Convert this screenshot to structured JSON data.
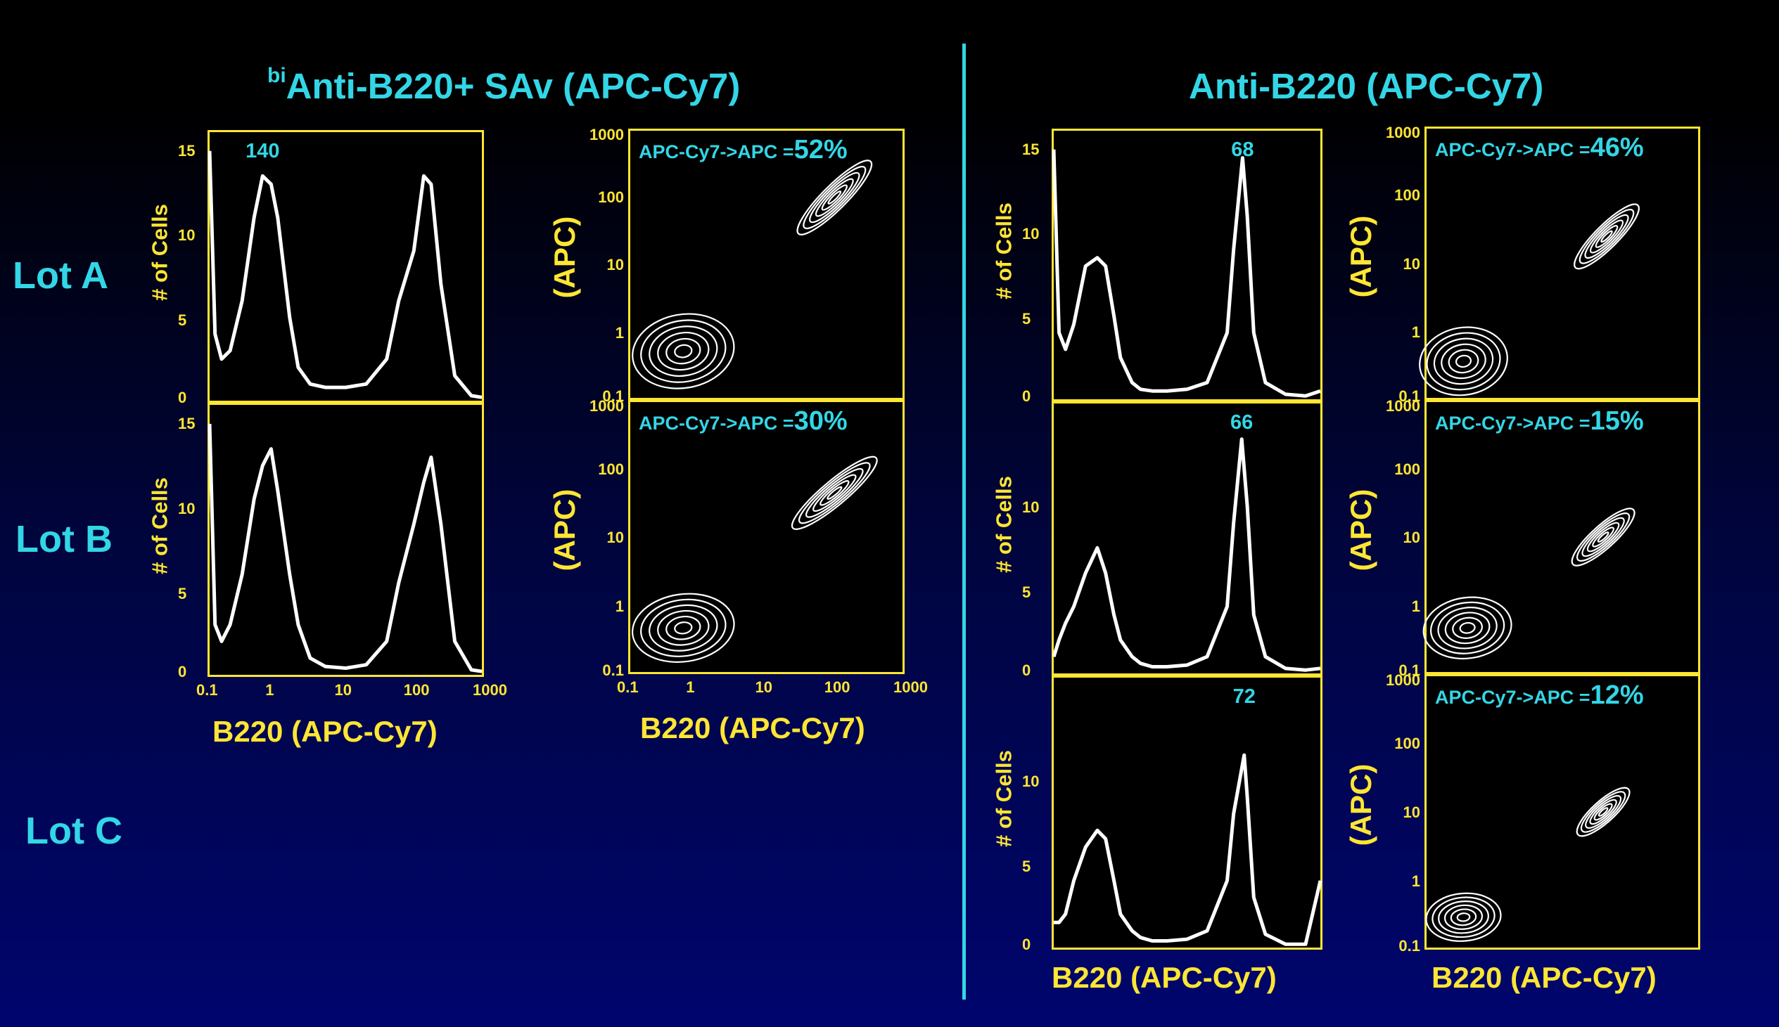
{
  "titles": {
    "left_sup": "bi",
    "left": "Anti-B220+ SAv  (APC-Cy7)",
    "right": "Anti-B220  (APC-Cy7)"
  },
  "lots": [
    "Lot A",
    "Lot B",
    "Lot C"
  ],
  "axis_labels": {
    "hist_y": "# of Cells",
    "contour_y": "(APC)",
    "x": "B220  (APC-Cy7)"
  },
  "ticks": {
    "hist_y_full": [
      "15",
      "10",
      "5",
      "0"
    ],
    "hist_y_short": [
      "10",
      "5",
      "0"
    ],
    "log": [
      "1000",
      "100",
      "10",
      "1",
      "0.1"
    ],
    "log_x": [
      "0.1",
      "1",
      "10",
      "100",
      "1000"
    ]
  },
  "colors": {
    "title": "#33d6e6",
    "axis": "#ffe633",
    "plot_bg": "#000000",
    "trace": "#ffffff"
  },
  "chart_data": [
    {
      "type": "line",
      "panel": "left-hist-lotA",
      "xlabel": "",
      "ylabel": "# of Cells",
      "xscale": "log",
      "xlim": [
        0.1,
        1000
      ],
      "ylim": [
        0,
        15
      ],
      "peak_label": "140",
      "x": [
        0.1,
        0.12,
        0.15,
        0.2,
        0.3,
        0.45,
        0.6,
        0.8,
        1,
        1.5,
        2,
        3,
        5,
        10,
        20,
        40,
        60,
        100,
        140,
        180,
        250,
        400,
        700,
        1000
      ],
      "values": [
        15,
        4,
        2.5,
        3,
        6,
        11,
        13.5,
        13,
        11,
        5,
        2,
        1,
        0.8,
        0.8,
        1,
        2.5,
        6,
        9,
        13.5,
        13,
        7,
        1.5,
        0.3,
        0.2
      ]
    },
    {
      "type": "line",
      "panel": "left-hist-lotB",
      "xlabel": "B220  (APC-Cy7)",
      "ylabel": "# of Cells",
      "xscale": "log",
      "xlim": [
        0.1,
        1000
      ],
      "ylim": [
        0,
        15
      ],
      "x": [
        0.1,
        0.12,
        0.15,
        0.2,
        0.3,
        0.45,
        0.6,
        0.8,
        1,
        1.5,
        2,
        3,
        5,
        10,
        20,
        40,
        60,
        100,
        140,
        180,
        250,
        400,
        700,
        1000
      ],
      "values": [
        15,
        3,
        2,
        3,
        6,
        10.5,
        12.5,
        13.5,
        11,
        6,
        3,
        1,
        0.5,
        0.4,
        0.6,
        2,
        5.5,
        9,
        11.5,
        13,
        9,
        2,
        0.3,
        0.2
      ]
    },
    {
      "type": "line",
      "panel": "right-hist-lotA",
      "xlabel": "",
      "ylabel": "# of Cells",
      "xscale": "log",
      "xlim": [
        0.1,
        1000
      ],
      "ylim": [
        0,
        15
      ],
      "peak_label": "68",
      "x": [
        0.1,
        0.12,
        0.15,
        0.2,
        0.3,
        0.45,
        0.6,
        0.8,
        1,
        1.5,
        2,
        3,
        5,
        10,
        20,
        40,
        50,
        68,
        80,
        100,
        150,
        300,
        600,
        1000
      ],
      "values": [
        15,
        4,
        3,
        4.5,
        8,
        8.5,
        8,
        5,
        2.5,
        1,
        0.6,
        0.5,
        0.5,
        0.6,
        1,
        4,
        9,
        14.5,
        11,
        4,
        1,
        0.3,
        0.2,
        0.5
      ]
    },
    {
      "type": "line",
      "panel": "right-hist-lotB",
      "xlabel": "",
      "ylabel": "# of Cells",
      "xscale": "log",
      "xlim": [
        0.1,
        1000
      ],
      "ylim": [
        0,
        15
      ],
      "peak_label": "66",
      "x": [
        0.1,
        0.12,
        0.15,
        0.2,
        0.3,
        0.45,
        0.6,
        0.8,
        1,
        1.5,
        2,
        3,
        5,
        10,
        20,
        40,
        50,
        66,
        80,
        100,
        150,
        300,
        600,
        1000
      ],
      "values": [
        1,
        2,
        3,
        4,
        6,
        7.5,
        6,
        3.5,
        2,
        1,
        0.6,
        0.4,
        0.4,
        0.5,
        1,
        4,
        9,
        14,
        10,
        3.5,
        1,
        0.3,
        0.2,
        0.3
      ]
    },
    {
      "type": "line",
      "panel": "right-hist-lotC",
      "xlabel": "B220  (APC-Cy7)",
      "ylabel": "# of Cells",
      "xscale": "log",
      "xlim": [
        0.1,
        1000
      ],
      "ylim": [
        0,
        15
      ],
      "peak_label": "72",
      "x": [
        0.1,
        0.12,
        0.15,
        0.2,
        0.3,
        0.45,
        0.6,
        0.8,
        1,
        1.5,
        2,
        3,
        5,
        10,
        20,
        40,
        50,
        72,
        80,
        100,
        150,
        300,
        600,
        1000
      ],
      "values": [
        1.5,
        1.5,
        2,
        4,
        6,
        7,
        6.5,
        4,
        2,
        1,
        0.6,
        0.4,
        0.4,
        0.5,
        1,
        4,
        8,
        11.5,
        9,
        3,
        0.8,
        0.2,
        0.2,
        4
      ]
    },
    {
      "type": "scatter",
      "subtype": "contour",
      "panel": "left-contour-lotA",
      "xlabel": "",
      "ylabel": "(APC)",
      "xscale": "log",
      "yscale": "log",
      "xlim": [
        0.1,
        1000
      ],
      "ylim": [
        0.1,
        1000
      ],
      "annotation": "APC-Cy7->APC =",
      "percent": "52%",
      "populations": [
        {
          "center": [
            0.6,
            0.5
          ],
          "spread": [
            0.75,
            0.55
          ],
          "angle": 10
        },
        {
          "center": [
            100,
            100
          ],
          "spread": [
            0.75,
            0.18
          ],
          "angle": 45
        }
      ]
    },
    {
      "type": "scatter",
      "subtype": "contour",
      "panel": "left-contour-lotB",
      "xlabel": "B220  (APC-Cy7)",
      "ylabel": "(APC)",
      "xscale": "log",
      "yscale": "log",
      "xlim": [
        0.1,
        1000
      ],
      "ylim": [
        0.1,
        1000
      ],
      "annotation": "APC-Cy7->APC =",
      "percent": "30%",
      "populations": [
        {
          "center": [
            0.6,
            0.45
          ],
          "spread": [
            0.75,
            0.5
          ],
          "angle": 8
        },
        {
          "center": [
            100,
            45
          ],
          "spread": [
            0.8,
            0.18
          ],
          "angle": 40
        }
      ]
    },
    {
      "type": "scatter",
      "subtype": "contour",
      "panel": "right-contour-lotA",
      "xlabel": "",
      "ylabel": "(APC)",
      "xscale": "log",
      "yscale": "log",
      "xlim": [
        0.1,
        1000
      ],
      "ylim": [
        0.1,
        1000
      ],
      "annotation": "APC-Cy7->APC =",
      "percent": "46%",
      "populations": [
        {
          "center": [
            0.35,
            0.35
          ],
          "spread": [
            0.65,
            0.5
          ],
          "angle": 10
        },
        {
          "center": [
            45,
            25
          ],
          "spread": [
            0.65,
            0.17
          ],
          "angle": 45
        }
      ]
    },
    {
      "type": "scatter",
      "subtype": "contour",
      "panel": "right-contour-lotB",
      "xlabel": "",
      "ylabel": "(APC)",
      "xscale": "log",
      "yscale": "log",
      "xlim": [
        0.1,
        1000
      ],
      "ylim": [
        0.1,
        1000
      ],
      "annotation": "APC-Cy7->APC =",
      "percent": "15%",
      "populations": [
        {
          "center": [
            0.4,
            0.45
          ],
          "spread": [
            0.65,
            0.45
          ],
          "angle": 8
        },
        {
          "center": [
            40,
            10
          ],
          "spread": [
            0.6,
            0.17
          ],
          "angle": 42
        }
      ]
    },
    {
      "type": "scatter",
      "subtype": "contour",
      "panel": "right-contour-lotC",
      "xlabel": "B220  (APC-Cy7)",
      "ylabel": "(APC)",
      "xscale": "log",
      "yscale": "log",
      "xlim": [
        0.1,
        1000
      ],
      "ylim": [
        0.1,
        1000
      ],
      "annotation": "APC-Cy7->APC =",
      "percent": "12%",
      "populations": [
        {
          "center": [
            0.35,
            0.28
          ],
          "spread": [
            0.55,
            0.35
          ],
          "angle": 5
        },
        {
          "center": [
            40,
            10
          ],
          "spread": [
            0.5,
            0.16
          ],
          "angle": 42
        }
      ]
    }
  ]
}
